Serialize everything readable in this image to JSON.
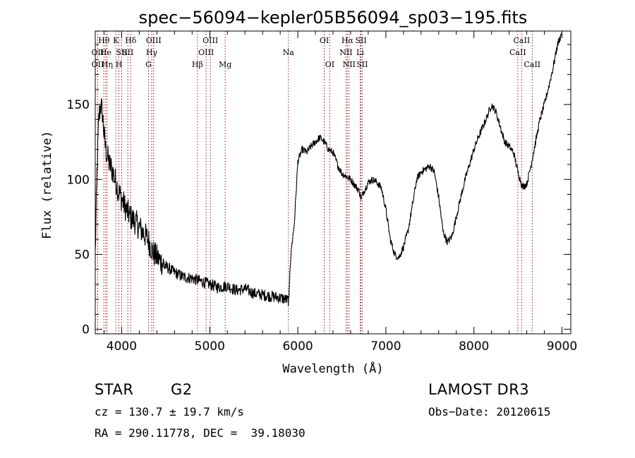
{
  "chart_data": {
    "type": "line",
    "title": "spec−56094−kepler05B56094_sp03−195.fits",
    "xlabel": "Wavelength (Å)",
    "ylabel": "Flux (relative)",
    "xlim": [
      3700,
      9100
    ],
    "ylim": [
      -3,
      199
    ],
    "xticks": [
      4000,
      5000,
      6000,
      7000,
      8000,
      9000
    ],
    "yticks": [
      0,
      50,
      100,
      150
    ],
    "grid": false,
    "line_color": "#000000",
    "marker_color": "#a01010",
    "series": [
      {
        "name": "spectrum",
        "x": [
          3700,
          3720,
          3740,
          3760,
          3780,
          3800,
          3820,
          3840,
          3860,
          3880,
          3900,
          3920,
          3940,
          3960,
          3980,
          4000,
          4050,
          4100,
          4150,
          4200,
          4250,
          4300,
          4350,
          4400,
          4450,
          4500,
          4600,
          4700,
          4800,
          4900,
          5000,
          5100,
          5200,
          5300,
          5400,
          5500,
          5600,
          5700,
          5800,
          5860,
          5900,
          5910,
          5930,
          5960,
          6000,
          6050,
          6100,
          6150,
          6200,
          6250,
          6300,
          6350,
          6400,
          6450,
          6500,
          6550,
          6600,
          6650,
          6700,
          6720,
          6750,
          6800,
          6850,
          6900,
          6950,
          7000,
          7050,
          7100,
          7150,
          7200,
          7250,
          7300,
          7350,
          7400,
          7450,
          7500,
          7550,
          7600,
          7650,
          7700,
          7750,
          7800,
          7850,
          7900,
          7950,
          8000,
          8050,
          8100,
          8150,
          8200,
          8250,
          8300,
          8350,
          8400,
          8450,
          8500,
          8550,
          8600,
          8650,
          8700,
          8750,
          8800,
          8850,
          8900,
          8950,
          9000
        ],
        "y": [
          50,
          105,
          140,
          150,
          145,
          130,
          120,
          115,
          110,
          108,
          105,
          100,
          98,
          92,
          90,
          87,
          80,
          75,
          72,
          68,
          64,
          60,
          52,
          48,
          45,
          42,
          38,
          35,
          34,
          32,
          30,
          28,
          29,
          26,
          27,
          24,
          23,
          22,
          21,
          20,
          19,
          40,
          55,
          70,
          112,
          120,
          118,
          122,
          125,
          128,
          125,
          120,
          118,
          110,
          104,
          102,
          100,
          96,
          92,
          87,
          92,
          98,
          100,
          98,
          94,
          80,
          60,
          50,
          48,
          55,
          65,
          82,
          100,
          105,
          107,
          109,
          105,
          88,
          65,
          58,
          62,
          75,
          88,
          100,
          110,
          120,
          128,
          135,
          142,
          150,
          145,
          135,
          125,
          122,
          118,
          105,
          95,
          97,
          110,
          125,
          140,
          150,
          162,
          175,
          190,
          198
        ]
      }
    ],
    "line_markers": [
      {
        "label": "OII",
        "x": 3727,
        "row": 2
      },
      {
        "label": "Hθ",
        "x": 3798,
        "row": 1
      },
      {
        "label": "He",
        "x": 3820,
        "row": 2
      },
      {
        "label": "OII",
        "x": 3728,
        "row": 3
      },
      {
        "label": "Hη",
        "x": 3835,
        "row": 3
      },
      {
        "label": "K",
        "x": 3934,
        "row": 1
      },
      {
        "label": "H",
        "x": 3969,
        "row": 3
      },
      {
        "label": "SII",
        "x": 4000,
        "row": 2
      },
      {
        "label": "Hδ",
        "x": 4102,
        "row": 1
      },
      {
        "label": "SII",
        "x": 4070,
        "row": 2
      },
      {
        "label": "OIII",
        "x": 4363,
        "row": 1
      },
      {
        "label": "Hγ",
        "x": 4341,
        "row": 2
      },
      {
        "label": "G",
        "x": 4305,
        "row": 3
      },
      {
        "label": "Hβ",
        "x": 4861,
        "row": 3
      },
      {
        "label": "OIII",
        "x": 4959,
        "row": 2
      },
      {
        "label": "OIII",
        "x": 5007,
        "row": 1
      },
      {
        "label": "Mg",
        "x": 5175,
        "row": 3
      },
      {
        "label": "Na",
        "x": 5893,
        "row": 2
      },
      {
        "label": "OI",
        "x": 6300,
        "row": 1
      },
      {
        "label": "OI",
        "x": 6363,
        "row": 3
      },
      {
        "label": "Hα",
        "x": 6563,
        "row": 1
      },
      {
        "label": "NII",
        "x": 6548,
        "row": 2
      },
      {
        "label": "NII",
        "x": 6583,
        "row": 3
      },
      {
        "label": "SII",
        "x": 6717,
        "row": 1
      },
      {
        "label": "Li",
        "x": 6708,
        "row": 2
      },
      {
        "label": "SII",
        "x": 6731,
        "row": 3
      },
      {
        "label": "CaII",
        "x": 8542,
        "row": 1
      },
      {
        "label": "CaII",
        "x": 8498,
        "row": 2
      },
      {
        "label": "CaII",
        "x": 8662,
        "row": 3
      }
    ]
  },
  "info": {
    "object_class": "STAR",
    "subclass": "G2",
    "survey": "LAMOST DR3",
    "redshift": "cz = 130.7 ± 19.7 km/s",
    "obs_date": "Obs−Date: 20120615",
    "coordinates": "RA = 290.11778, DEC =  39.18030"
  }
}
